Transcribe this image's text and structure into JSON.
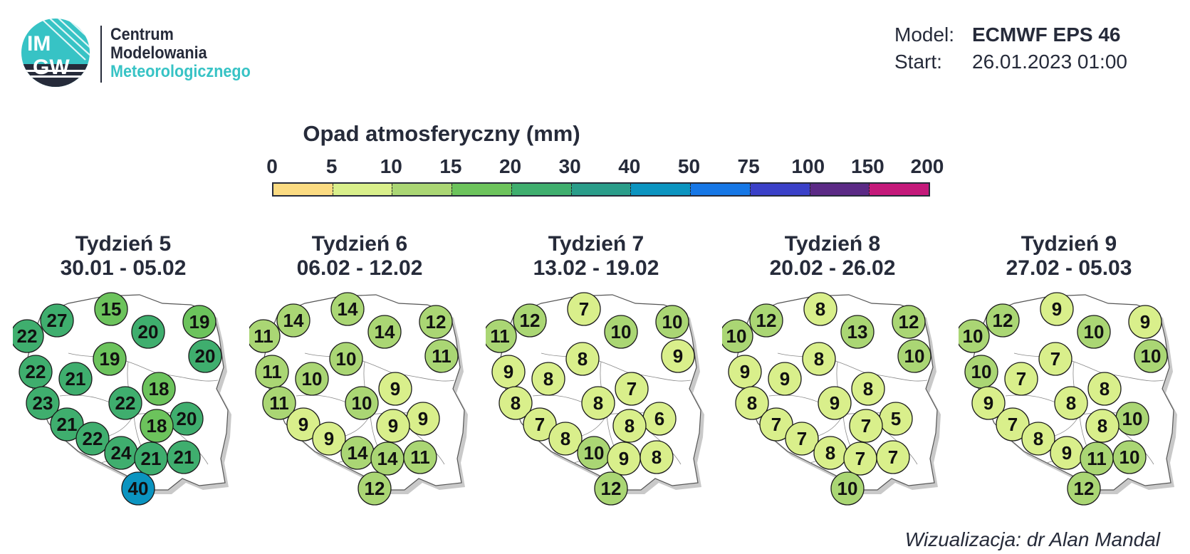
{
  "logo": {
    "mark_line1": "IM",
    "mark_line2": "GW",
    "line1": "Centrum",
    "line2": "Modelowania",
    "line3": "Meteorologicznego"
  },
  "meta": {
    "model_label": "Model:",
    "model_value": "ECMWF EPS 46",
    "start_label": "Start:",
    "start_value": "26.01.2023 01:00"
  },
  "legend": {
    "title": "Opad atmosferyczny (mm)",
    "ticks": [
      "0",
      "5",
      "10",
      "15",
      "20",
      "30",
      "40",
      "50",
      "75",
      "100",
      "150",
      "200"
    ],
    "colors": [
      "#fbdb82",
      "#d9ef8b",
      "#aad674",
      "#6cc35c",
      "#3fae6e",
      "#2a9d8a",
      "#0b94c0",
      "#1677e6",
      "#3a40c8",
      "#5b2a86",
      "#c4197a"
    ]
  },
  "weeks": [
    {
      "title": "Tydzień 5",
      "dates": "30.01 - 05.02",
      "values": [
        27,
        15,
        22,
        20,
        19,
        19,
        20,
        22,
        21,
        23,
        22,
        18,
        21,
        20,
        18,
        22,
        24,
        21,
        21,
        40
      ]
    },
    {
      "title": "Tydzień 6",
      "dates": "06.02 - 12.02",
      "values": [
        14,
        14,
        11,
        14,
        12,
        10,
        11,
        11,
        10,
        11,
        10,
        9,
        9,
        9,
        9,
        9,
        14,
        14,
        11,
        12
      ]
    },
    {
      "title": "Tydzień 7",
      "dates": "13.02 - 19.02",
      "values": [
        12,
        7,
        11,
        10,
        10,
        8,
        9,
        9,
        8,
        8,
        8,
        7,
        7,
        6,
        8,
        8,
        10,
        9,
        8,
        12
      ]
    },
    {
      "title": "Tydzień 8",
      "dates": "20.02 - 26.02",
      "values": [
        12,
        8,
        10,
        13,
        12,
        8,
        10,
        9,
        9,
        8,
        9,
        8,
        7,
        5,
        7,
        7,
        8,
        7,
        7,
        10
      ]
    },
    {
      "title": "Tydzień 9",
      "dates": "27.02 - 05.03",
      "values": [
        12,
        9,
        10,
        10,
        9,
        7,
        10,
        10,
        7,
        9,
        8,
        8,
        7,
        10,
        8,
        8,
        9,
        11,
        10,
        12
      ]
    }
  ],
  "credit": "Wizualizacja: dr Alan Mandal"
}
